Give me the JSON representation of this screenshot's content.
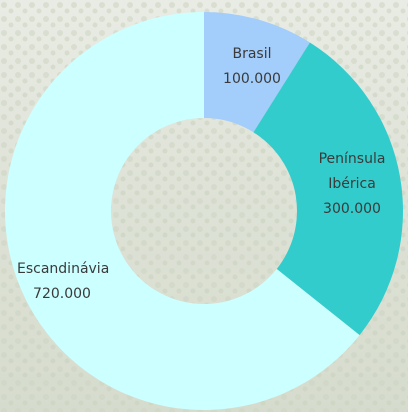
{
  "chart_data": {
    "type": "donut",
    "categories": [
      "Brasil",
      "Península Ibérica",
      "Escandinávia"
    ],
    "values": [
      100000,
      300000,
      720000
    ],
    "value_labels": [
      "100.000",
      "300.000",
      "720.000"
    ],
    "colors": [
      "#a3cdfa",
      "#33cccc",
      "#ccffff"
    ]
  }
}
